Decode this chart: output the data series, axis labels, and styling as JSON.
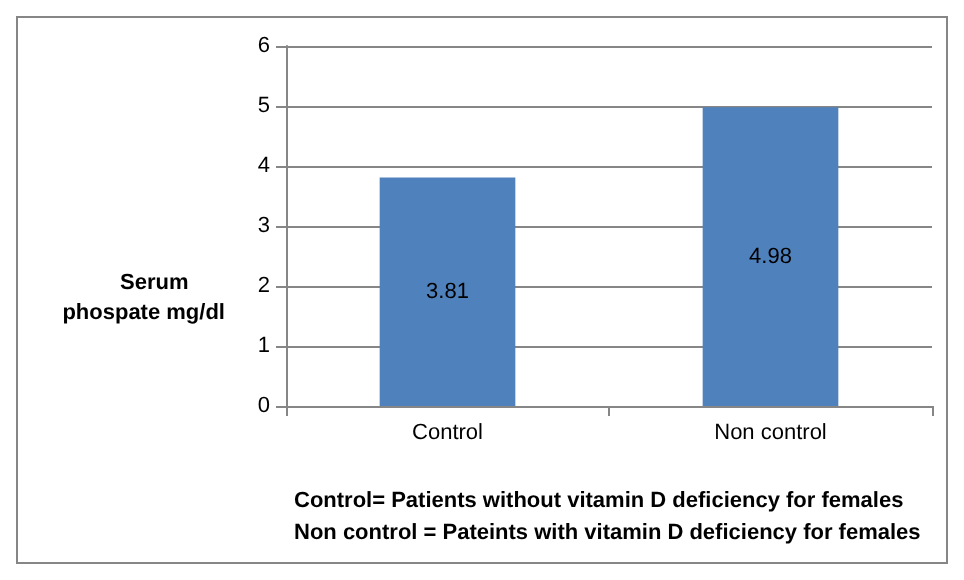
{
  "chart_data": {
    "type": "bar",
    "ylabel": "Serum\nphospate mg/dl",
    "categories": [
      "Control",
      "Non control"
    ],
    "values": [
      3.81,
      4.98
    ],
    "color": "#4f81bd",
    "ylim": [
      0,
      6
    ],
    "yticks": [
      0,
      1,
      2,
      3,
      4,
      5,
      6
    ],
    "grid": "y",
    "data_labels": true,
    "annotations": [
      "Control= Patients without vitamin D deficiency for females",
      "Non control = Pateints with vitamin D deficiency for females"
    ]
  }
}
